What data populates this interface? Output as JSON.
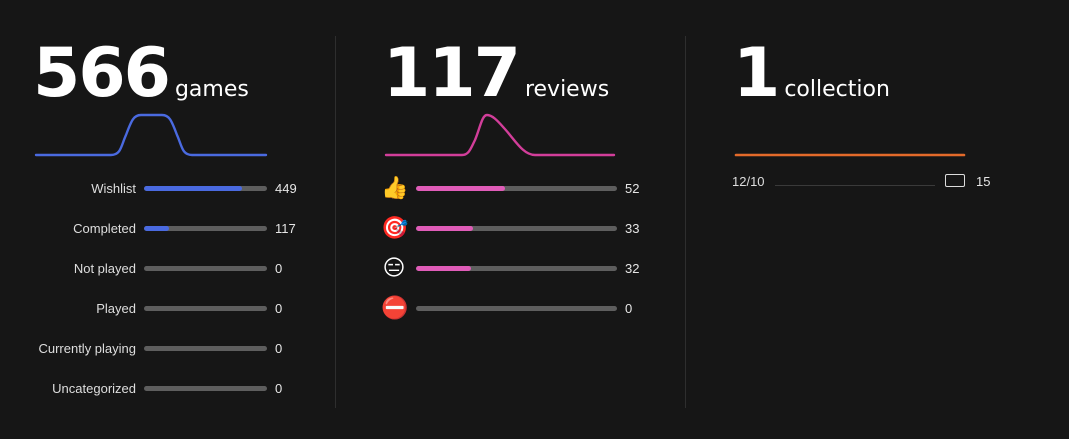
{
  "games": {
    "count": "566",
    "unit": "games",
    "sparkline_color": "#4a6ae0",
    "bar_color": "#4a6ae0",
    "rows": [
      {
        "label": "Wishlist",
        "value": "449",
        "fraction": 0.795
      },
      {
        "label": "Completed",
        "value": "117",
        "fraction": 0.207
      },
      {
        "label": "Not played",
        "value": "0",
        "fraction": 0
      },
      {
        "label": "Played",
        "value": "0",
        "fraction": 0
      },
      {
        "label": "Currently playing",
        "value": "0",
        "fraction": 0
      },
      {
        "label": "Uncategorized",
        "value": "0",
        "fraction": 0
      }
    ]
  },
  "reviews": {
    "count": "117",
    "unit": "reviews",
    "sparkline_color": "#d23e9a",
    "bar_color": "#e05cb8",
    "rows": [
      {
        "icon": "thumbs-up-icon",
        "glyph": "👍",
        "value": "52",
        "fraction": 0.444
      },
      {
        "icon": "target-icon",
        "glyph": "🎯",
        "value": "33",
        "fraction": 0.282
      },
      {
        "icon": "expressionless-face-icon",
        "glyph": "😑",
        "value": "32",
        "fraction": 0.274
      },
      {
        "icon": "no-entry-icon",
        "glyph": "⛔",
        "value": "0",
        "fraction": 0
      }
    ]
  },
  "collections": {
    "count": "1",
    "unit": "collection",
    "line_color": "#e36a2a",
    "items": [
      {
        "date": "12/10",
        "icon": "rectangle-icon",
        "count": "15"
      }
    ]
  }
}
